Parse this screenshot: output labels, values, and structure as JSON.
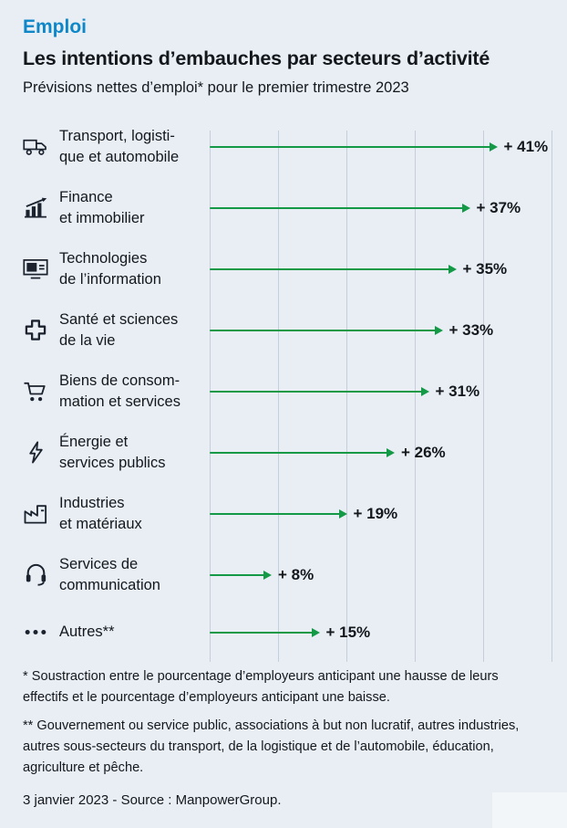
{
  "page": {
    "background": "#e8eef4",
    "kicker": "Emploi",
    "title": "Les intentions d’embauches par secteurs d’activité",
    "subtitle": "Prévisions nettes d’emploi* pour le premier trimestre 2023"
  },
  "colors": {
    "kicker_blue": "#0e87c9",
    "arrow_green": "#149a47",
    "gridline": "#c5cedb",
    "text": "#14181d",
    "icon": "#1c232e"
  },
  "chart_data": {
    "type": "bar",
    "subtype": "horizontal-arrows",
    "unit": "%",
    "xlim": [
      0,
      50
    ],
    "grid_step": 10,
    "grid_on": true,
    "categories": [
      "Transport, logistique et automobile",
      "Finance et immobilier",
      "Technologies de l’information",
      "Santé et sciences de la vie",
      "Biens de consommation et services",
      "Énergie et services publics",
      "Industries et matériaux",
      "Services de communication",
      "Autres**"
    ],
    "values": [
      41,
      37,
      35,
      33,
      31,
      26,
      19,
      8,
      15
    ],
    "rows": [
      {
        "icon": "truck-icon",
        "label_lines": [
          "Transport, logisti-",
          "que et automobile"
        ],
        "value": 41,
        "value_label": "+ 41%"
      },
      {
        "icon": "finance-chart-icon",
        "label_lines": [
          "Finance",
          "et immobilier"
        ],
        "value": 37,
        "value_label": "+ 37%"
      },
      {
        "icon": "computer-icon",
        "label_lines": [
          "Technologies",
          "de l’information"
        ],
        "value": 35,
        "value_label": "+ 35%"
      },
      {
        "icon": "medical-cross-icon",
        "label_lines": [
          "Santé et sciences",
          "de la vie"
        ],
        "value": 33,
        "value_label": "+ 33%"
      },
      {
        "icon": "shopping-cart-icon",
        "label_lines": [
          "Biens de consom-",
          "mation et services"
        ],
        "value": 31,
        "value_label": "+ 31%"
      },
      {
        "icon": "lightning-icon",
        "label_lines": [
          "Énergie et",
          "services publics"
        ],
        "value": 26,
        "value_label": "+ 26%"
      },
      {
        "icon": "factory-icon",
        "label_lines": [
          "Industries",
          "et matériaux"
        ],
        "value": 19,
        "value_label": "+ 19%"
      },
      {
        "icon": "headset-icon",
        "label_lines": [
          "Services de",
          "communication"
        ],
        "value": 8,
        "value_label": "+ 8%"
      },
      {
        "icon": "ellipsis-icon",
        "label_lines": [
          "Autres**"
        ],
        "value": 15,
        "value_label": "+ 15%"
      }
    ]
  },
  "footnotes": {
    "single": "* Soustraction entre le pourcentage d’employeurs anticipant une hausse de leurs effectifs et le pourcentage d’employeurs anticipant une baisse.",
    "double": "** Gouvernement ou service public, associations à but non lucratif, autres industries, autres sous-secteurs du transport, de la logistique et de l’automobile, éducation, agriculture et pêche."
  },
  "footer": {
    "source_line": "3 janvier 2023 - Source : ManpowerGroup."
  }
}
